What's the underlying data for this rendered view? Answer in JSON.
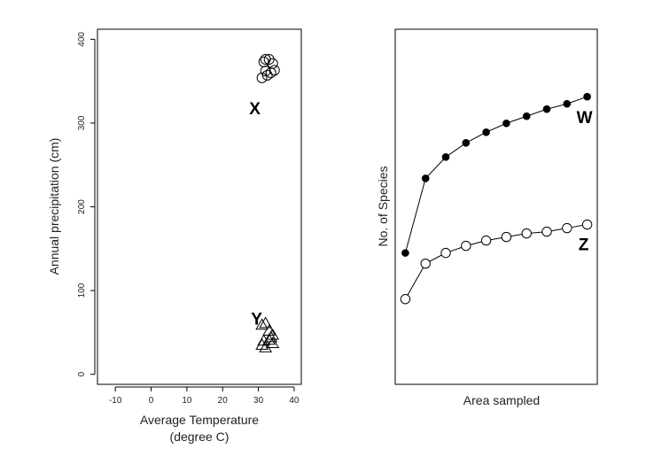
{
  "chart_data": [
    {
      "type": "scatter",
      "xlabel_line1": "Average Temperature",
      "xlabel_line2": "(degree C)",
      "ylabel": "Annual precipitation (cm)",
      "xlim": [
        -15,
        42
      ],
      "ylim": [
        -12,
        412
      ],
      "xticks": [
        -10,
        0,
        10,
        20,
        30,
        40
      ],
      "yticks": [
        0,
        100,
        200,
        300,
        400
      ],
      "grid": false,
      "groups": [
        {
          "label": "X",
          "marker": "circle",
          "label_position": [
            29,
            318
          ],
          "points": [
            {
              "x": 31,
              "y": 354
            },
            {
              "x": 32,
              "y": 376
            },
            {
              "x": 31.5,
              "y": 373
            },
            {
              "x": 33,
              "y": 376
            },
            {
              "x": 34,
              "y": 371
            },
            {
              "x": 33.5,
              "y": 360
            },
            {
              "x": 34.5,
              "y": 363
            },
            {
              "x": 32.5,
              "y": 357
            },
            {
              "x": 32,
              "y": 362
            }
          ]
        },
        {
          "label": "Y",
          "marker": "triangle",
          "label_position": [
            29.5,
            67
          ],
          "points": [
            {
              "x": 31,
              "y": 59
            },
            {
              "x": 32,
              "y": 61
            },
            {
              "x": 33,
              "y": 52
            },
            {
              "x": 34,
              "y": 47
            },
            {
              "x": 31.5,
              "y": 40
            },
            {
              "x": 33,
              "y": 41
            },
            {
              "x": 34,
              "y": 37
            },
            {
              "x": 31,
              "y": 35
            },
            {
              "x": 32,
              "y": 32
            },
            {
              "x": 33.5,
              "y": 44
            }
          ]
        }
      ]
    },
    {
      "type": "line",
      "xlabel": "Area sampled",
      "ylabel": "No. of Species",
      "xlim": [
        0.5,
        10.5
      ],
      "ylim": [
        0,
        100
      ],
      "axis_ticks": false,
      "grid": false,
      "x": [
        1,
        2,
        3,
        4,
        5,
        6,
        7,
        8,
        9,
        10
      ],
      "series": [
        {
          "name": "W",
          "marker": "filled-circle",
          "values": [
            37,
            58,
            64,
            68,
            71,
            73.5,
            75.5,
            77.5,
            79,
            81
          ]
        },
        {
          "name": "Z",
          "marker": "open-circle",
          "values": [
            24,
            34,
            37,
            39,
            40.5,
            41.5,
            42.5,
            43,
            44,
            45
          ]
        }
      ]
    }
  ]
}
